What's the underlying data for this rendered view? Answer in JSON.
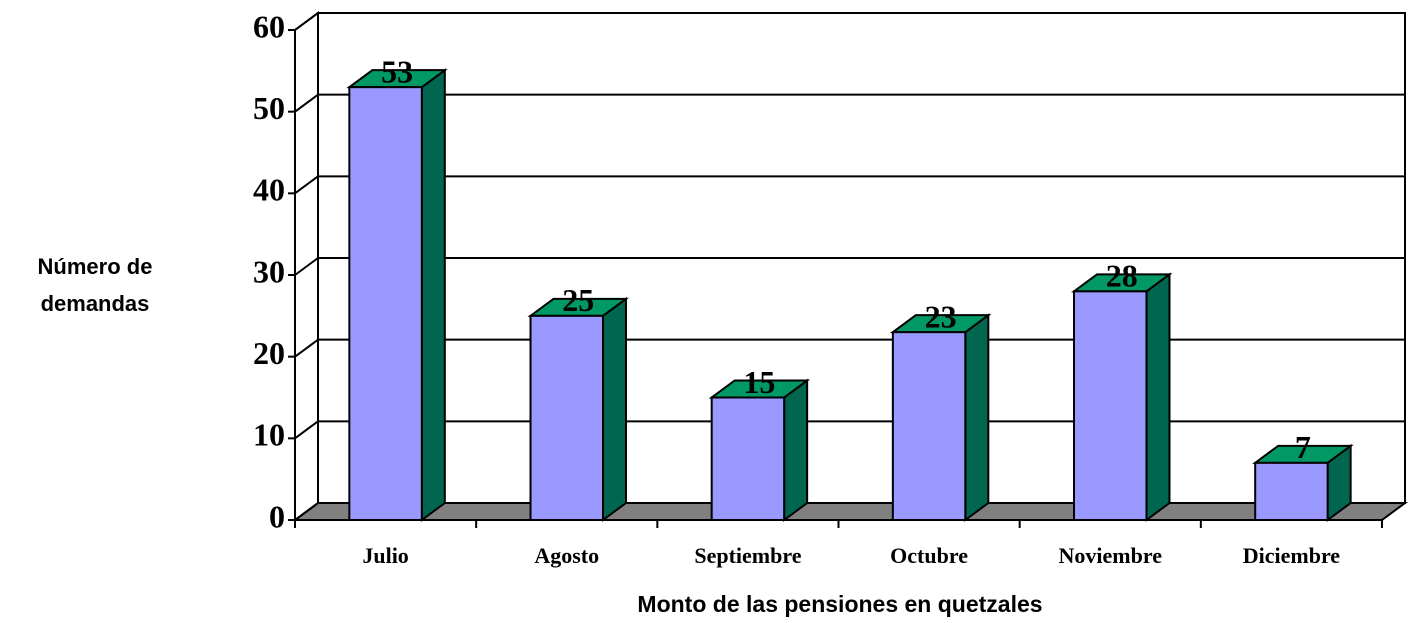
{
  "chart_data": {
    "type": "bar3d",
    "xlabel": "Monto de las pensiones en quetzales",
    "ylabel": [
      "Número de",
      "demandas"
    ],
    "categories": [
      "Julio",
      "Agosto",
      "Septiembre",
      "Octubre",
      "Noviembre",
      "Diciembre"
    ],
    "values": [
      53,
      25,
      15,
      23,
      28,
      7
    ],
    "color": "#9999ff",
    "side_color": "#006650",
    "top_color": "#009966",
    "floor_color": "#808080",
    "ylim": [
      0,
      60
    ],
    "yticks": [
      0,
      10,
      20,
      30,
      40,
      50,
      60
    ],
    "grid": true
  }
}
